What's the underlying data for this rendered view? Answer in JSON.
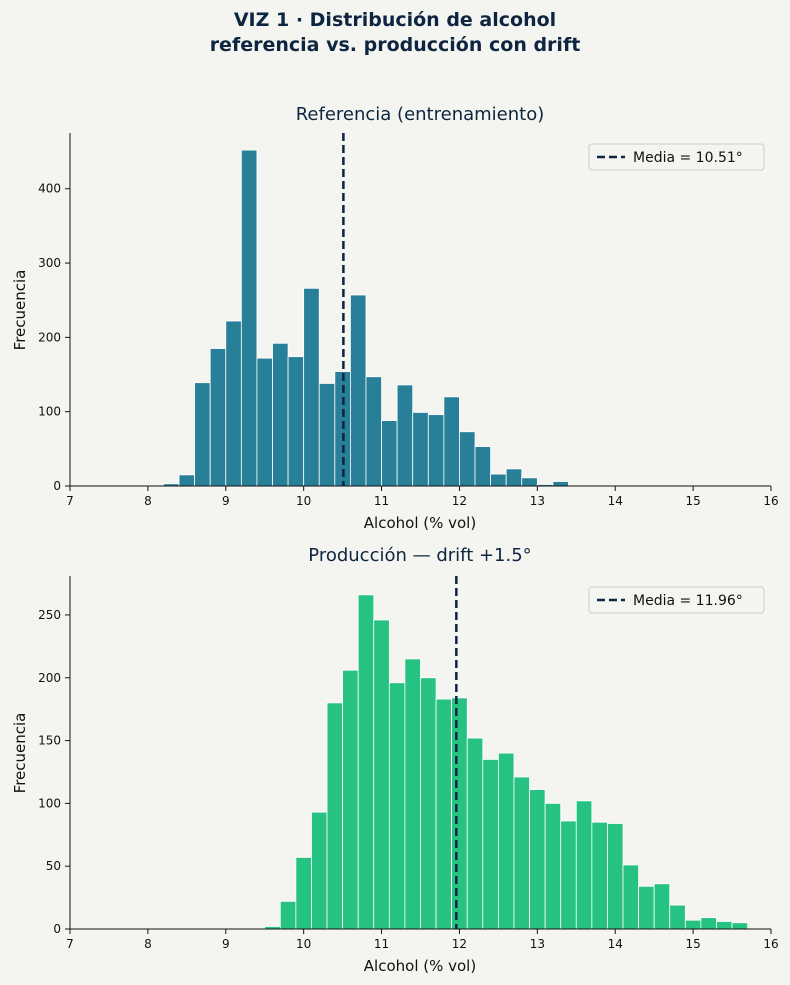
{
  "figure": {
    "title_line1": "VIZ 1 · Distribución de alcohol",
    "title_line2": "referencia vs. producción con drift"
  },
  "chart_data": [
    {
      "type": "bar",
      "title": "Referencia (entrenamiento)",
      "xlabel": "Alcohol (% vol)",
      "ylabel": "Frecuencia",
      "xlim": [
        7,
        16
      ],
      "ylim": [
        0,
        475
      ],
      "xticks": [
        7,
        8,
        9,
        10,
        11,
        12,
        13,
        14,
        15,
        16
      ],
      "yticks": [
        0,
        100,
        200,
        300,
        400
      ],
      "bar_color": "#277f98",
      "bin_width": 0.2,
      "bin_starts": [
        8.2,
        8.4,
        8.6,
        8.8,
        9.0,
        9.2,
        9.4,
        9.6,
        9.8,
        10.0,
        10.2,
        10.4,
        10.6,
        10.8,
        11.0,
        11.2,
        11.4,
        11.6,
        11.8,
        12.0,
        12.2,
        12.4,
        12.6,
        12.8,
        13.0,
        13.2,
        13.4,
        13.6,
        13.8,
        14.0
      ],
      "values": [
        3,
        15,
        139,
        185,
        222,
        452,
        172,
        192,
        174,
        266,
        138,
        154,
        257,
        147,
        88,
        136,
        99,
        96,
        120,
        73,
        53,
        16,
        23,
        11,
        2,
        6,
        0,
        0,
        0,
        0
      ],
      "mean_line": {
        "value": 10.51,
        "label": "Media = 10.51°",
        "color": "#0d2540"
      },
      "legend_position": "top-right",
      "grid": false
    },
    {
      "type": "bar",
      "title": "Producción  — drift +1.5°",
      "xlabel": "Alcohol (% vol)",
      "ylabel": "Frecuencia",
      "xlim": [
        7,
        16
      ],
      "ylim": [
        0,
        281
      ],
      "xticks": [
        7,
        8,
        9,
        10,
        11,
        12,
        13,
        14,
        15,
        16
      ],
      "yticks": [
        0,
        50,
        100,
        150,
        200,
        250
      ],
      "bar_color": "#26c281",
      "bin_width": 0.2,
      "bin_starts": [
        9.5,
        9.7,
        9.9,
        10.1,
        10.3,
        10.5,
        10.7,
        10.9,
        11.1,
        11.3,
        11.5,
        11.7,
        11.9,
        12.1,
        12.3,
        12.5,
        12.7,
        12.9,
        13.1,
        13.3,
        13.5,
        13.7,
        13.9,
        14.1,
        14.3,
        14.5,
        14.7,
        14.9,
        15.1,
        15.3,
        15.5
      ],
      "values": [
        2,
        22,
        57,
        93,
        180,
        206,
        266,
        246,
        196,
        215,
        200,
        183,
        184,
        152,
        135,
        140,
        121,
        111,
        100,
        86,
        102,
        85,
        84,
        51,
        34,
        36,
        19,
        7,
        9,
        6,
        5
      ],
      "mean_line": {
        "value": 11.96,
        "label": "Media = 11.96°",
        "color": "#0d2540"
      },
      "legend_position": "top-right",
      "grid": false
    }
  ]
}
